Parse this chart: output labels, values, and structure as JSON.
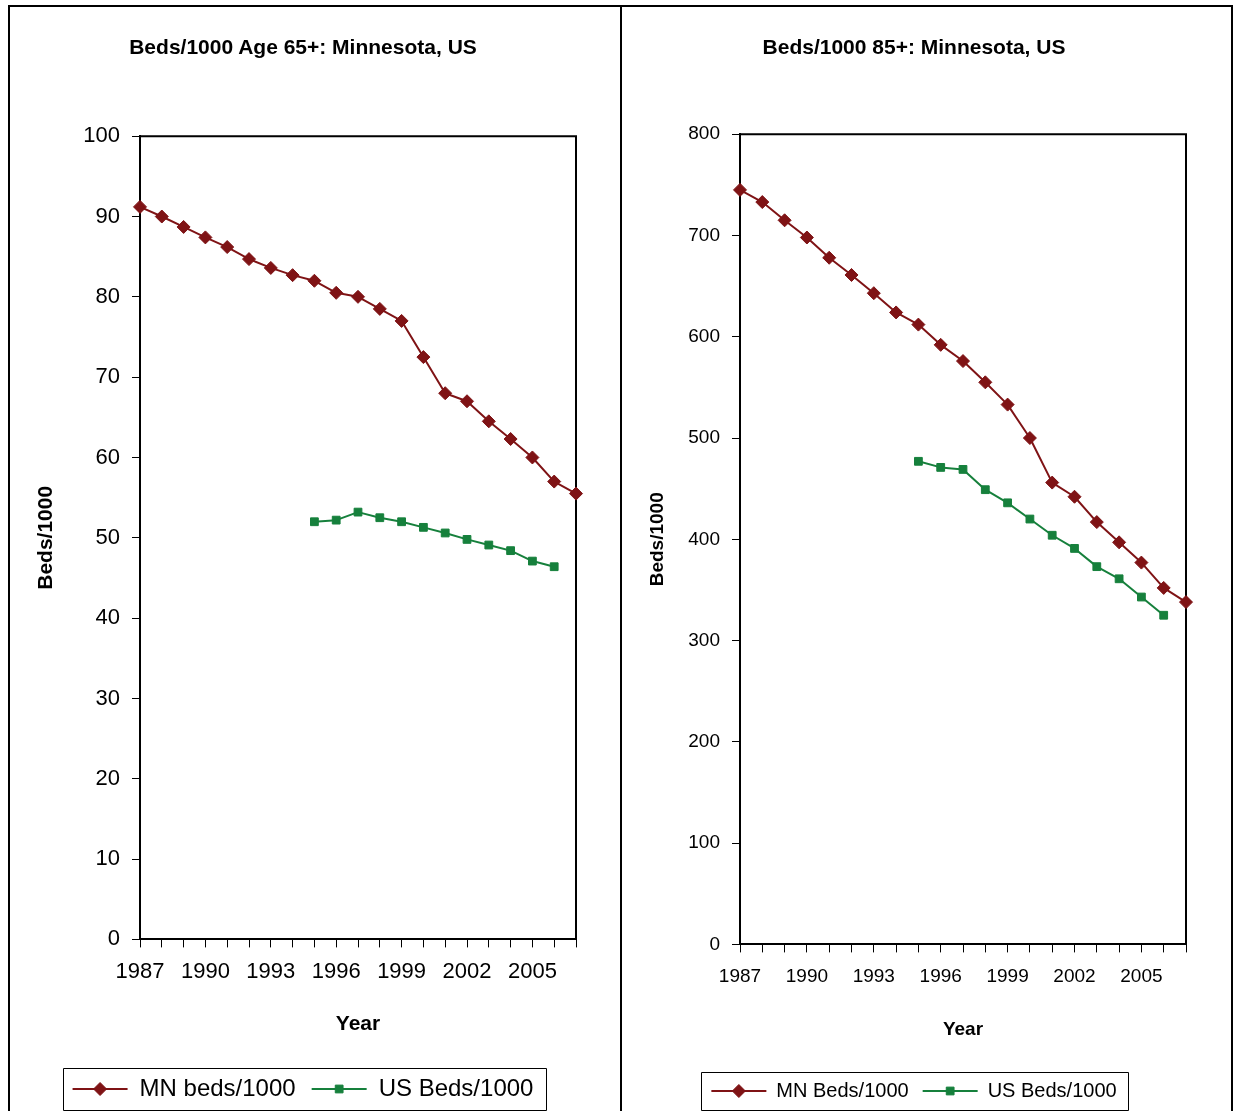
{
  "chart_data": [
    {
      "type": "line",
      "title": "Beds/1000 Age 65+: Minnesota, US",
      "xlabel": "Year",
      "ylabel": "Beds/1000",
      "x": [
        1987,
        1988,
        1989,
        1990,
        1991,
        1992,
        1993,
        1994,
        1995,
        1996,
        1997,
        1998,
        1999,
        2000,
        2001,
        2002,
        2003,
        2004,
        2005,
        2006,
        2007
      ],
      "xlim": [
        1987,
        2007
      ],
      "xticks": [
        1987,
        {
          "value": 1988,
          "label": null
        },
        {
          "value": 1989,
          "label": null
        },
        1990,
        {
          "value": 1991,
          "label": null
        },
        {
          "value": 1992,
          "label": null
        },
        1993,
        {
          "value": 1994,
          "label": null
        },
        {
          "value": 1995,
          "label": null
        },
        1996,
        {
          "value": 1997,
          "label": null
        },
        {
          "value": 1998,
          "label": null
        },
        1999,
        {
          "value": 2000,
          "label": null
        },
        {
          "value": 2001,
          "label": null
        },
        2002,
        {
          "value": 2003,
          "label": null
        },
        {
          "value": 2004,
          "label": null
        },
        2005,
        {
          "value": 2006,
          "label": null
        },
        {
          "value": 2007,
          "label": null
        }
      ],
      "ylim": [
        0,
        100
      ],
      "yticks": [
        0,
        10,
        20,
        30,
        40,
        50,
        60,
        70,
        80,
        90,
        100
      ],
      "grid": false,
      "legend": "bottom",
      "line_style": "solid",
      "series": [
        {
          "name": "MN beds/1000",
          "color": "#7f1315",
          "marker": "diamond",
          "values": [
            91.2,
            90.0,
            88.7,
            87.4,
            86.2,
            84.7,
            83.6,
            82.7,
            82.0,
            80.5,
            80.0,
            78.5,
            77.0,
            72.5,
            68.0,
            67.0,
            64.5,
            62.3,
            60.0,
            57.0,
            55.5
          ]
        },
        {
          "name": "US Beds/1000",
          "color": "#16803c",
          "marker": "square",
          "x": [
            1995,
            1996,
            1997,
            1998,
            1999,
            2000,
            2001,
            2002,
            2003,
            2004,
            2005,
            2006
          ],
          "values": [
            52.0,
            52.2,
            53.2,
            52.5,
            52.0,
            51.3,
            50.6,
            49.8,
            49.1,
            48.4,
            47.1,
            46.4
          ]
        }
      ]
    },
    {
      "type": "line",
      "title": "Beds/1000 85+: Minnesota, US",
      "xlabel": "Year",
      "ylabel": "Beds/1000",
      "x": [
        1987,
        1988,
        1989,
        1990,
        1991,
        1992,
        1993,
        1994,
        1995,
        1996,
        1997,
        1998,
        1999,
        2000,
        2001,
        2002,
        2003,
        2004,
        2005,
        2006,
        2007
      ],
      "xlim": [
        1987,
        2007
      ],
      "xticks": [
        1987,
        {
          "value": 1988,
          "label": null
        },
        {
          "value": 1989,
          "label": null
        },
        1990,
        {
          "value": 1991,
          "label": null
        },
        {
          "value": 1992,
          "label": null
        },
        1993,
        {
          "value": 1994,
          "label": null
        },
        {
          "value": 1995,
          "label": null
        },
        1996,
        {
          "value": 1997,
          "label": null
        },
        {
          "value": 1998,
          "label": null
        },
        1999,
        {
          "value": 2000,
          "label": null
        },
        {
          "value": 2001,
          "label": null
        },
        2002,
        {
          "value": 2003,
          "label": null
        },
        {
          "value": 2004,
          "label": null
        },
        2005,
        {
          "value": 2006,
          "label": null
        },
        {
          "value": 2007,
          "label": null
        }
      ],
      "ylim": [
        0,
        800
      ],
      "yticks": [
        0,
        100,
        200,
        300,
        400,
        500,
        600,
        700,
        800
      ],
      "grid": false,
      "legend": "bottom",
      "line_style": "solid",
      "series": [
        {
          "name": "MN Beds/1000",
          "color": "#7f1315",
          "marker": "diamond",
          "values": [
            745,
            733,
            715,
            698,
            678,
            661,
            643,
            624,
            612,
            592,
            576,
            555,
            533,
            500,
            456,
            442,
            417,
            397,
            377,
            352,
            338
          ]
        },
        {
          "name": "US Beds/1000",
          "color": "#16803c",
          "marker": "square",
          "x": [
            1995,
            1996,
            1997,
            1998,
            1999,
            2000,
            2001,
            2002,
            2003,
            2004,
            2005,
            2006
          ],
          "values": [
            477,
            471,
            469,
            449,
            436,
            420,
            404,
            391,
            373,
            361,
            343,
            325
          ]
        }
      ]
    }
  ]
}
